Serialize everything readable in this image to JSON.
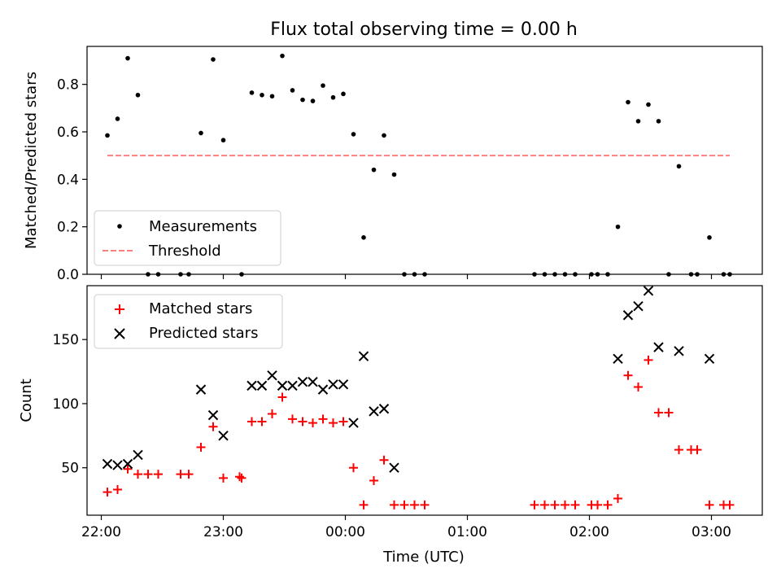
{
  "chart_data": [
    {
      "type": "scatter",
      "title": "Flux total observing time = 0.00 h",
      "xlabel": "",
      "ylabel": "Matched/Predicted stars",
      "xlim": [
        "21:53",
        "03:25"
      ],
      "ylim": [
        0,
        0.96
      ],
      "grid": false,
      "legend_position": "lower-left",
      "x_ticks": [
        "22:00",
        "23:00",
        "00:00",
        "01:00",
        "02:00",
        "03:00"
      ],
      "y_ticks": [
        "0.0",
        "0.2",
        "0.4",
        "0.6",
        "0.8"
      ],
      "series": [
        {
          "name": "Measurements",
          "color": "#000000",
          "marker": "dot",
          "points": [
            [
              "22:03",
              0.585
            ],
            [
              "22:08",
              0.655
            ],
            [
              "22:13",
              0.91
            ],
            [
              "22:18",
              0.755
            ],
            [
              "22:23",
              0.0
            ],
            [
              "22:28",
              0.0
            ],
            [
              "22:39",
              0.0
            ],
            [
              "22:43",
              0.0
            ],
            [
              "22:49",
              0.595
            ],
            [
              "22:55",
              0.905
            ],
            [
              "23:00",
              0.565
            ],
            [
              "23:09",
              0.0
            ],
            [
              "23:14",
              0.765
            ],
            [
              "23:19",
              0.755
            ],
            [
              "23:24",
              0.75
            ],
            [
              "23:29",
              0.92
            ],
            [
              "23:34",
              0.775
            ],
            [
              "23:39",
              0.735
            ],
            [
              "23:44",
              0.73
            ],
            [
              "23:49",
              0.795
            ],
            [
              "23:54",
              0.745
            ],
            [
              "23:59",
              0.76
            ],
            [
              "00:04",
              0.59
            ],
            [
              "00:09",
              0.155
            ],
            [
              "00:14",
              0.44
            ],
            [
              "00:19",
              0.585
            ],
            [
              "00:24",
              0.42
            ],
            [
              "00:29",
              0.0
            ],
            [
              "00:34",
              0.0
            ],
            [
              "00:39",
              0.0
            ],
            [
              "01:33",
              0.0
            ],
            [
              "01:38",
              0.0
            ],
            [
              "01:43",
              0.0
            ],
            [
              "01:48",
              0.0
            ],
            [
              "01:53",
              0.0
            ],
            [
              "02:01",
              0.0
            ],
            [
              "02:04",
              0.0
            ],
            [
              "02:09",
              0.0
            ],
            [
              "02:14",
              0.2
            ],
            [
              "02:19",
              0.725
            ],
            [
              "02:24",
              0.645
            ],
            [
              "02:29",
              0.715
            ],
            [
              "02:34",
              0.645
            ],
            [
              "02:39",
              0.0
            ],
            [
              "02:44",
              0.455
            ],
            [
              "02:50",
              0.0
            ],
            [
              "02:53",
              0.0
            ],
            [
              "02:59",
              0.155
            ],
            [
              "03:06",
              0.0
            ],
            [
              "03:09",
              0.0
            ]
          ]
        },
        {
          "name": "Threshold",
          "color": "#ff7f7f",
          "style": "dashed",
          "points": [
            [
              "22:03",
              0.5
            ],
            [
              "03:09",
              0.5
            ]
          ]
        }
      ]
    },
    {
      "type": "scatter",
      "title": "",
      "xlabel": "Time (UTC)",
      "ylabel": "Count",
      "xlim": [
        "21:53",
        "03:25"
      ],
      "ylim": [
        13,
        192
      ],
      "grid": false,
      "legend_position": "top-left",
      "x_ticks": [
        "22:00",
        "23:00",
        "00:00",
        "01:00",
        "02:00",
        "03:00"
      ],
      "y_ticks": [
        "50",
        "100",
        "150"
      ],
      "series": [
        {
          "name": "Matched stars",
          "color": "#ff0000",
          "marker": "plus",
          "points": [
            [
              "22:03",
              31
            ],
            [
              "22:08",
              33
            ],
            [
              "22:13",
              49
            ],
            [
              "22:18",
              45
            ],
            [
              "22:23",
              45
            ],
            [
              "22:28",
              45
            ],
            [
              "22:39",
              45
            ],
            [
              "22:43",
              45
            ],
            [
              "22:49",
              66
            ],
            [
              "22:55",
              82
            ],
            [
              "23:00",
              42
            ],
            [
              "23:08",
              43
            ],
            [
              "23:09",
              42
            ],
            [
              "23:14",
              86
            ],
            [
              "23:19",
              86
            ],
            [
              "23:24",
              92
            ],
            [
              "23:29",
              105
            ],
            [
              "23:34",
              88
            ],
            [
              "23:39",
              86
            ],
            [
              "23:44",
              85
            ],
            [
              "23:49",
              88
            ],
            [
              "23:54",
              85
            ],
            [
              "23:59",
              86
            ],
            [
              "00:04",
              50
            ],
            [
              "00:09",
              21
            ],
            [
              "00:14",
              40
            ],
            [
              "00:19",
              56
            ],
            [
              "00:24",
              21
            ],
            [
              "00:29",
              21
            ],
            [
              "00:34",
              21
            ],
            [
              "00:39",
              21
            ],
            [
              "01:33",
              21
            ],
            [
              "01:38",
              21
            ],
            [
              "01:43",
              21
            ],
            [
              "01:48",
              21
            ],
            [
              "01:53",
              21
            ],
            [
              "02:01",
              21
            ],
            [
              "02:04",
              21
            ],
            [
              "02:09",
              21
            ],
            [
              "02:14",
              26
            ],
            [
              "02:19",
              122
            ],
            [
              "02:24",
              113
            ],
            [
              "02:29",
              134
            ],
            [
              "02:34",
              93
            ],
            [
              "02:39",
              93
            ],
            [
              "02:44",
              64
            ],
            [
              "02:50",
              64
            ],
            [
              "02:53",
              64
            ],
            [
              "02:59",
              21
            ],
            [
              "03:06",
              21
            ],
            [
              "03:09",
              21
            ]
          ]
        },
        {
          "name": "Predicted stars",
          "color": "#000000",
          "marker": "x",
          "points": [
            [
              "22:03",
              53
            ],
            [
              "22:08",
              52
            ],
            [
              "22:13",
              53
            ],
            [
              "22:18",
              60
            ],
            [
              "22:49",
              111
            ],
            [
              "22:55",
              91
            ],
            [
              "23:00",
              75
            ],
            [
              "23:14",
              114
            ],
            [
              "23:19",
              114
            ],
            [
              "23:24",
              122
            ],
            [
              "23:29",
              114
            ],
            [
              "23:34",
              114
            ],
            [
              "23:39",
              117
            ],
            [
              "23:44",
              117
            ],
            [
              "23:49",
              111
            ],
            [
              "23:54",
              115
            ],
            [
              "23:59",
              115
            ],
            [
              "00:04",
              85
            ],
            [
              "00:09",
              137
            ],
            [
              "00:14",
              94
            ],
            [
              "00:19",
              96
            ],
            [
              "00:24",
              50
            ],
            [
              "02:14",
              135
            ],
            [
              "02:19",
              169
            ],
            [
              "02:24",
              176
            ],
            [
              "02:29",
              188
            ],
            [
              "02:34",
              144
            ],
            [
              "02:44",
              141
            ],
            [
              "02:59",
              135
            ]
          ]
        }
      ]
    }
  ]
}
